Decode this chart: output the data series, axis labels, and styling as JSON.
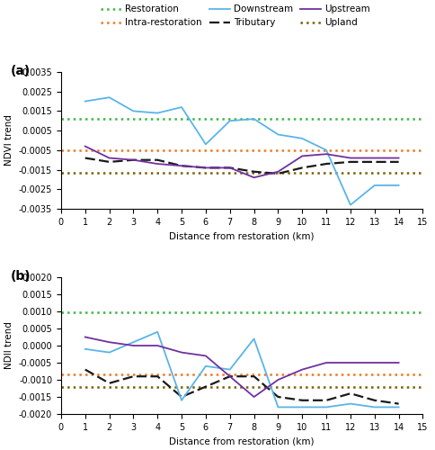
{
  "panel_a": {
    "title": "(a)",
    "ylabel": "NDVI trend",
    "xlabel": "Distance from restoration (km)",
    "ylim": [
      -0.0035,
      0.0035
    ],
    "yticks": [
      -0.0035,
      -0.0025,
      -0.0015,
      -0.0005,
      0.0005,
      0.0015,
      0.0025,
      0.0035
    ],
    "xlim": [
      0,
      15
    ],
    "xticks": [
      0,
      1,
      2,
      3,
      4,
      5,
      6,
      7,
      8,
      9,
      10,
      11,
      12,
      13,
      14,
      15
    ],
    "restoration_val": 0.0011,
    "intra_restoration_val": -0.0005,
    "upland_val": -0.00165,
    "downstream_x": [
      1,
      2,
      3,
      4,
      5,
      6,
      7,
      8,
      9,
      10,
      11,
      12,
      13,
      14
    ],
    "downstream_y": [
      0.002,
      0.0022,
      0.0015,
      0.0014,
      0.0017,
      -0.0002,
      0.001,
      0.0011,
      0.0003,
      0.0001,
      -0.0005,
      -0.0033,
      -0.0023,
      -0.0023
    ],
    "upstream_x": [
      1,
      2,
      3,
      4,
      5,
      6,
      7,
      8,
      9,
      10,
      11,
      12,
      13,
      14
    ],
    "upstream_y": [
      -0.0003,
      -0.0009,
      -0.001,
      -0.0012,
      -0.0013,
      -0.0014,
      -0.0014,
      -0.0019,
      -0.0016,
      -0.0008,
      -0.0007,
      -0.0009,
      -0.0009,
      -0.0009
    ],
    "tributary_x": [
      1,
      2,
      3,
      4,
      5,
      6,
      7,
      8,
      9,
      10,
      11,
      12,
      13,
      14
    ],
    "tributary_y": [
      -0.0009,
      -0.0011,
      -0.001,
      -0.001,
      -0.0013,
      -0.0014,
      -0.0014,
      -0.0016,
      -0.0017,
      -0.0014,
      -0.0012,
      -0.0011,
      -0.0011,
      -0.0011
    ]
  },
  "panel_b": {
    "title": "(b)",
    "ylabel": "NDII trend",
    "xlabel": "Distance from restoration (km)",
    "ylim": [
      -0.002,
      0.002
    ],
    "yticks": [
      -0.002,
      -0.0015,
      -0.001,
      -0.0005,
      0.0,
      0.0005,
      0.001,
      0.0015,
      0.002
    ],
    "xlim": [
      0,
      15
    ],
    "xticks": [
      0,
      1,
      2,
      3,
      4,
      5,
      6,
      7,
      8,
      9,
      10,
      11,
      12,
      13,
      14,
      15
    ],
    "restoration_val": 0.00098,
    "intra_restoration_val": -0.00085,
    "upland_val": -0.00122,
    "downstream_x": [
      1,
      2,
      3,
      4,
      5,
      6,
      7,
      8,
      9,
      10,
      11,
      12,
      13,
      14
    ],
    "downstream_y": [
      -0.0001,
      -0.0002,
      0.0001,
      0.0004,
      -0.0016,
      -0.0006,
      -0.0007,
      0.0002,
      -0.0018,
      -0.0018,
      -0.0018,
      -0.0017,
      -0.0018,
      -0.0018
    ],
    "upstream_x": [
      1,
      2,
      3,
      4,
      5,
      6,
      7,
      8,
      9,
      10,
      11,
      12,
      13,
      14
    ],
    "upstream_y": [
      0.00025,
      0.0001,
      0.0,
      0.0,
      -0.0002,
      -0.0003,
      -0.0009,
      -0.0015,
      -0.001,
      -0.0007,
      -0.0005,
      -0.0005,
      -0.0005,
      -0.0005
    ],
    "tributary_x": [
      1,
      2,
      3,
      4,
      5,
      6,
      7,
      8,
      9,
      10,
      11,
      12,
      13,
      14
    ],
    "tributary_y": [
      -0.0007,
      -0.0011,
      -0.0009,
      -0.0009,
      -0.0015,
      -0.0012,
      -0.0009,
      -0.0009,
      -0.0015,
      -0.0016,
      -0.0016,
      -0.0014,
      -0.0016,
      -0.0017
    ]
  },
  "colors": {
    "restoration": "#3cb844",
    "intra_restoration": "#f07820",
    "downstream": "#5ab4e8",
    "tributary": "#1a1a1a",
    "upstream": "#7030a0",
    "upland": "#7a6000"
  },
  "legend": {
    "row1": [
      "Restoration",
      "Intra-restoration",
      "Downstream"
    ],
    "row2": [
      "Tributary",
      "Upstream",
      "Upland"
    ]
  }
}
